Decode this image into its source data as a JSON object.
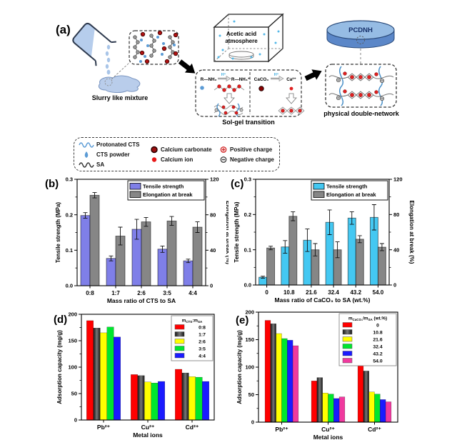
{
  "figure": {
    "panel_a": {
      "label": "(a)",
      "slurry_label": "Slurry like mixture",
      "acetic_line1": "Acetic acid",
      "acetic_line2": "atmosphere",
      "solgel_label": "Sol-gel transition",
      "pcdnh_label": "PCDNH",
      "network_label": "physical double-network",
      "reaction_left": {
        "reactant": "R—NH₂",
        "condition": "H⁺",
        "product": "R—NH₃⁺"
      },
      "reaction_right": {
        "reactant": "CaCO₃",
        "condition": "H⁺",
        "product": "Ca²⁺"
      }
    },
    "legend_box": {
      "items": [
        {
          "icon": "blue-wave-icon",
          "label": "Protonated CTS"
        },
        {
          "icon": "blue-droplet-icon",
          "label": "CTS powder"
        },
        {
          "icon": "black-wave-icon",
          "label": "SA"
        },
        {
          "icon": "dark-red-circle-icon",
          "label": "Calcium carbonate"
        },
        {
          "icon": "red-dot-icon",
          "label": "Calcium ion"
        },
        {
          "icon": "positive-charge-icon",
          "label": "Positive charge"
        },
        {
          "icon": "negative-charge-icon",
          "label": "Negative charge"
        }
      ]
    }
  },
  "chart_data": [
    {
      "id": "b",
      "panel_label": "(b)",
      "type": "bar",
      "categories": [
        "0:8",
        "1:7",
        "2:6",
        "3:5",
        "4:4"
      ],
      "xlabel": "Mass ratio of CTS to SA",
      "left_axis": {
        "label": "Tensile strength (MPa)",
        "min": 0,
        "max": 0.3,
        "ticks": [
          0,
          0.1,
          0.2,
          0.3
        ],
        "tick_labels": [
          "0.0",
          "0.1",
          "0.2",
          "0.3"
        ],
        "minor": 0.05
      },
      "right_axis": {
        "label": "Elongation at break (%)",
        "min": 0,
        "max": 120,
        "ticks": [
          0,
          40,
          80,
          120
        ],
        "tick_labels": [
          "0",
          "40",
          "80",
          "120"
        ],
        "minor": 20
      },
      "series": [
        {
          "name": "Tensile strength",
          "axis": "left",
          "color": "#7f7fe8",
          "values": [
            0.198,
            0.077,
            0.159,
            0.103,
            0.07
          ],
          "errors": [
            0.008,
            0.007,
            0.028,
            0.009,
            0.005
          ]
        },
        {
          "name": "Elongation at break",
          "axis": "right",
          "color": "#868686",
          "values": [
            102,
            56,
            72,
            73,
            66
          ],
          "errors": [
            3,
            10,
            5,
            5,
            6
          ]
        }
      ],
      "legend": {
        "style": "plain",
        "position": "top-right"
      }
    },
    {
      "id": "c",
      "panel_label": "(c)",
      "type": "bar",
      "categories": [
        "0",
        "10.8",
        "21.6",
        "32.4",
        "43.2",
        "54.0"
      ],
      "xlabel": "Mass ratio of CaCO₃ to SA (wt.%)",
      "left_axis": {
        "label": "Tensile strength (MPa)",
        "min": 0,
        "max": 0.3,
        "ticks": [
          0,
          0.1,
          0.2,
          0.3
        ],
        "tick_labels": [
          "0.0",
          "0.1",
          "0.2",
          "0.3"
        ],
        "minor": 0.05
      },
      "right_axis": {
        "label": "Elongation at break (%)",
        "min": 0,
        "max": 120,
        "ticks": [
          0,
          40,
          80,
          120
        ],
        "tick_labels": [
          "0",
          "40",
          "80",
          "120"
        ],
        "minor": 20
      },
      "series": [
        {
          "name": "Tensile strength",
          "axis": "left",
          "color": "#44c8f2",
          "values": [
            0.022,
            0.108,
            0.127,
            0.178,
            0.19,
            0.192
          ],
          "errors": [
            0.003,
            0.018,
            0.032,
            0.035,
            0.018,
            0.036
          ]
        },
        {
          "name": "Elongation at break",
          "axis": "right",
          "color": "#868686",
          "values": [
            42,
            78,
            40,
            40,
            52,
            43
          ],
          "errors": [
            2,
            5,
            7,
            9,
            4,
            4
          ]
        }
      ],
      "legend": {
        "style": "plain",
        "position": "top-right"
      }
    },
    {
      "id": "d",
      "panel_label": "(d)",
      "type": "bar",
      "categories": [
        "Pb²⁺",
        "Cu²⁺",
        "Cd²⁺"
      ],
      "xlabel": "Metal ions",
      "left_axis": {
        "label": "Adsorption capacity (mg/g)",
        "min": 0,
        "max": 200,
        "ticks": [
          0,
          50,
          100,
          150,
          200
        ],
        "tick_labels": [
          "0",
          "50",
          "100",
          "150",
          "200"
        ],
        "minor": 25
      },
      "series": [
        {
          "name": "0:8",
          "color": "#ff0000",
          "values": [
            188,
            86,
            96
          ]
        },
        {
          "name": "1:7",
          "color": "#141414",
          "gradient": true,
          "values": [
            174,
            84,
            89
          ]
        },
        {
          "name": "2:6",
          "color": "#ffff00",
          "values": [
            165,
            72,
            82
          ]
        },
        {
          "name": "3:5",
          "color": "#00e62e",
          "values": [
            176,
            70,
            81
          ]
        },
        {
          "name": "4:4",
          "color": "#1a1aff",
          "values": [
            157,
            73,
            73
          ]
        }
      ],
      "legend": {
        "style": "titled",
        "title": "m_{CTS}:m_{SA}",
        "position": "top-right"
      }
    },
    {
      "id": "e",
      "panel_label": "(e)",
      "type": "bar",
      "categories": [
        "Pb²⁺",
        "Cu²⁺",
        "Cd²⁺"
      ],
      "xlabel": "Metal ions",
      "left_axis": {
        "label": "Adsorption capacity (mg/g)",
        "min": 0,
        "max": 200,
        "ticks": [
          0,
          50,
          100,
          150,
          200
        ],
        "tick_labels": [
          "0",
          "50",
          "100",
          "150",
          "200"
        ],
        "minor": 25
      },
      "series": [
        {
          "name": "0",
          "color": "#ff0000",
          "values": [
            185,
            75,
            115
          ]
        },
        {
          "name": "10.8",
          "color": "#141414",
          "gradient": true,
          "values": [
            179,
            81,
            93
          ]
        },
        {
          "name": "21.6",
          "color": "#ffff00",
          "values": [
            161,
            53,
            55
          ]
        },
        {
          "name": "32.4",
          "color": "#00e62e",
          "values": [
            152,
            51,
            51
          ]
        },
        {
          "name": "43.2",
          "color": "#1a1aff",
          "values": [
            149,
            43,
            41
          ]
        },
        {
          "name": "54.0",
          "color": "#f0399e",
          "values": [
            139,
            46,
            37
          ]
        }
      ],
      "legend": {
        "style": "titled",
        "title": "m_{CaCO₃}/m_{SA} (wt.%)",
        "position": "top-right"
      }
    }
  ]
}
